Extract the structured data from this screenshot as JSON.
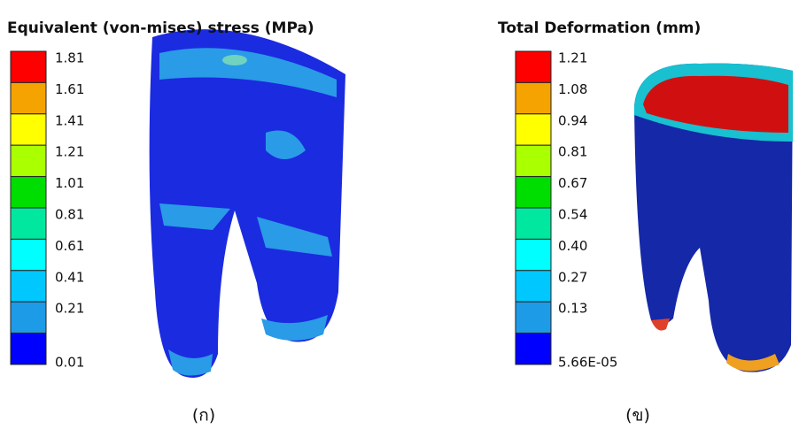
{
  "panels": [
    {
      "title": "Equivalent (von-mises) stress (MPa)",
      "labels": [
        "1.81",
        "1.61",
        "1.41",
        "1.21",
        "1.01",
        "0.81",
        "0.61",
        "0.41",
        "0.21",
        "0.01"
      ],
      "colors": [
        "#ff0000",
        "#f5a300",
        "#ffff00",
        "#aaff00",
        "#00dd00",
        "#00e8a0",
        "#00ffff",
        "#00c8ff",
        "#1e9be6",
        "#0000ff"
      ],
      "caption": "(ก)"
    },
    {
      "title": "Total Deformation (mm)",
      "labels": [
        "1.21",
        "1.08",
        "0.94",
        "0.81",
        "0.67",
        "0.54",
        "0.40",
        "0.27",
        "0.13",
        "5.66E-05"
      ],
      "colors": [
        "#ff0000",
        "#f5a300",
        "#ffff00",
        "#aaff00",
        "#00dd00",
        "#00e8a0",
        "#00ffff",
        "#00c8ff",
        "#1e9be6",
        "#0000ff"
      ],
      "caption": "(ข)"
    }
  ]
}
